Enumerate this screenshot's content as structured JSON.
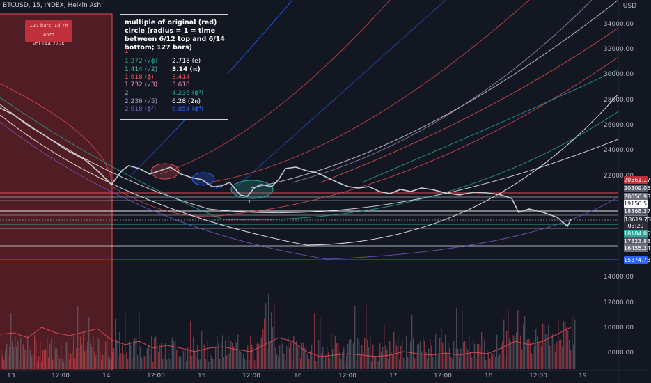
{
  "symbol_info": "BTCUSD, 15, INDEX, Heikin Ashi",
  "currency": "USD",
  "measure": {
    "bars": "127 bars, 1d 7h 45m",
    "vol": "Vol 144.222K"
  },
  "note": {
    "title": "multiple of original (red) circle (radius = 1 = time between 6/12 top and 6/14 bottom; 127 bars)",
    "items": [
      {
        "text": "1",
        "color": "#e84a55"
      },
      {
        "text": "1.272 (√ϕ)",
        "color": "#26a69a"
      },
      {
        "text": "1.414 (√2)",
        "color": "#4db6ac"
      },
      {
        "text": "1.618 (ϕ)",
        "color": "#ff5252"
      },
      {
        "text": "1.732 (√3)",
        "color": "#f48fb1"
      },
      {
        "text": "2",
        "color": "#9e9e9e"
      },
      {
        "text": "2.236 (√5)",
        "color": "#b39ddb"
      },
      {
        "text": "2.618 (ϕ²)",
        "color": "#7e57c2"
      },
      {
        "text": "2.718 (e)",
        "color": "#ffffff"
      },
      {
        "text": "3.14 (π)",
        "color": "#ffffff"
      },
      {
        "text": "3.414",
        "color": "#ef5350"
      },
      {
        "text": "3.618",
        "color": "#f48fb1"
      },
      {
        "text": "4.236 (ϕ³)",
        "color": "#26a69a"
      },
      {
        "text": "6.28 (2π)",
        "color": "#ffffff"
      },
      {
        "text": "6.854 (ϕ⁴)",
        "color": "#2962ff"
      }
    ]
  },
  "y_axis": [
    "34000.00",
    "32000.00",
    "30000.00",
    "28000.00",
    "26000.00",
    "24000.00",
    "22000.00",
    "14000.00",
    "12000.00",
    "10000.00",
    "8000.00"
  ],
  "x_axis": [
    "13",
    "12:00",
    "14",
    "12:00",
    "15",
    "12:00",
    "16",
    "12:00",
    "17",
    "12:00",
    "18",
    "12:00",
    "19"
  ],
  "price_tags": [
    {
      "text": "20561.17",
      "color": "#c0303a"
    },
    {
      "text": "20309.05",
      "color": "#555a66"
    },
    {
      "text": "20056.93",
      "color": "#6b707c"
    },
    {
      "text": "19156.51",
      "color": "#ffffff"
    },
    {
      "text": "18868.37",
      "color": "#555a66"
    },
    {
      "text": "18619.73",
      "color": "#2a2e39"
    },
    {
      "text": "03:29",
      "color": "#2a2e39"
    },
    {
      "text": "18184.05",
      "color": "#26a69a"
    },
    {
      "text": "17823.88",
      "color": "#555a66"
    },
    {
      "text": "16455.24",
      "color": "#6b707c"
    },
    {
      "text": "15374.73",
      "color": "#2962ff"
    }
  ],
  "labels": {
    "small_a": "0.6",
    "small_b": "1"
  },
  "colors": {
    "background": "#131722",
    "accent_red": "#e84a55",
    "up": "#ffffff",
    "down": "#787b86"
  }
}
